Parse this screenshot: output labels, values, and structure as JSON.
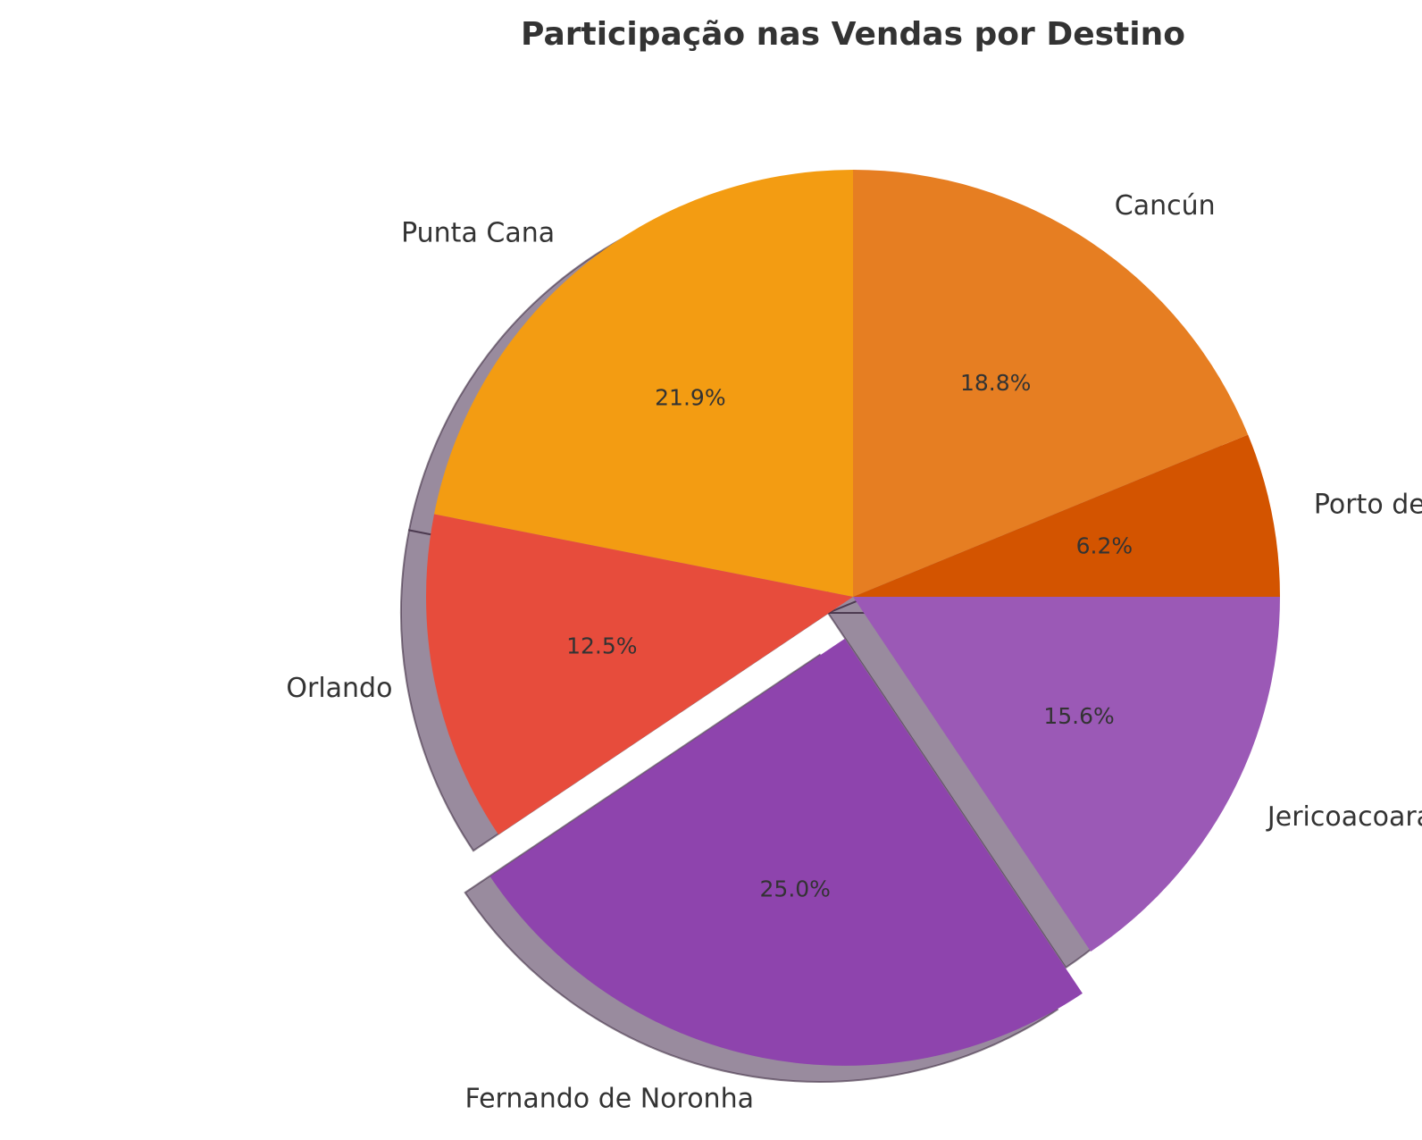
{
  "chart_data": {
    "type": "pie",
    "title": "Participação nas Vendas por Destino",
    "start_angle": 90,
    "direction": "counterclockwise",
    "shadow": true,
    "slices": [
      {
        "label": "Punta Cana",
        "value": 21.9,
        "pct_label": "21.9%",
        "color": "#f39c12",
        "explode": false
      },
      {
        "label": "Orlando",
        "value": 12.5,
        "pct_label": "12.5%",
        "color": "#e74c3c",
        "explode": false
      },
      {
        "label": "Fernando de Noronha",
        "value": 25.0,
        "pct_label": "25.0%",
        "color": "#8e44ad",
        "explode": true
      },
      {
        "label": "Jericoacoara",
        "value": 15.6,
        "pct_label": "15.6%",
        "color": "#9b59b6",
        "explode": false
      },
      {
        "label": "Porto de Galinhas",
        "value": 6.2,
        "pct_label": "6.2%",
        "color": "#d35400",
        "explode": false
      },
      {
        "label": "Cancún",
        "value": 18.8,
        "pct_label": "18.8%",
        "color": "#e67e22",
        "explode": false
      }
    ]
  }
}
